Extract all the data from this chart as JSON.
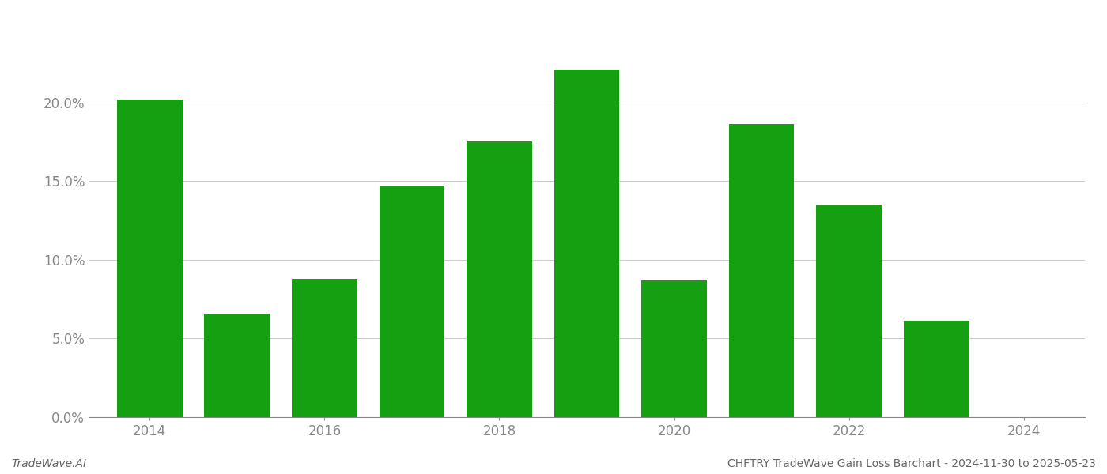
{
  "years": [
    2014,
    2015,
    2016,
    2017,
    2018,
    2019,
    2020,
    2021,
    2022,
    2023
  ],
  "values": [
    0.202,
    0.066,
    0.088,
    0.147,
    0.175,
    0.221,
    0.087,
    0.186,
    0.135,
    0.061
  ],
  "bar_color": "#14a010",
  "background_color": "#ffffff",
  "footer_left": "TradeWave.AI",
  "footer_right": "CHFTRY TradeWave Gain Loss Barchart - 2024-11-30 to 2025-05-23",
  "ylim": [
    0,
    0.25
  ],
  "yticks": [
    0.0,
    0.05,
    0.1,
    0.15,
    0.2
  ],
  "ytick_labels": [
    "0.0%",
    "5.0%",
    "10.0%",
    "15.0%",
    "20.0%"
  ],
  "xticks": [
    2014,
    2016,
    2018,
    2020,
    2022,
    2024
  ],
  "xlim": [
    2013.3,
    2024.7
  ],
  "grid_color": "#cccccc",
  "axis_color": "#888888",
  "tick_color": "#888888",
  "footer_fontsize": 10,
  "tick_fontsize": 12,
  "bar_width": 0.75
}
